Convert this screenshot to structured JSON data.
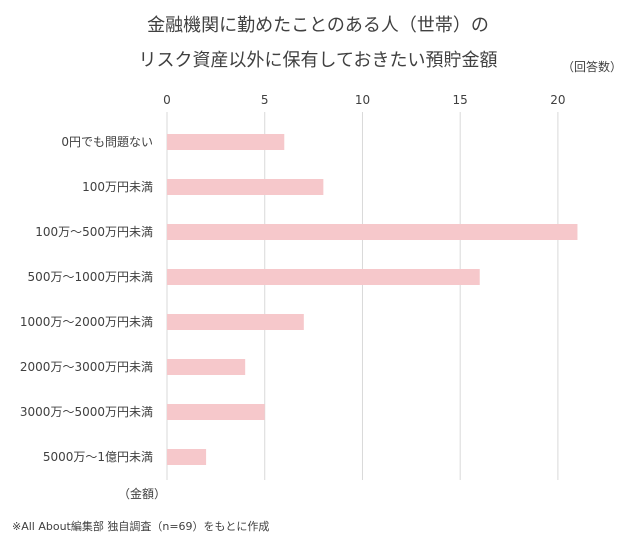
{
  "chart_data": {
    "type": "bar",
    "orientation": "horizontal",
    "title_lines": [
      "金融機関に勤めたことのある人（世帯）の",
      "リスク資産以外に保有しておきたい預貯金額"
    ],
    "value_unit_label": "（回答数）",
    "category_axis_label": "（金額）",
    "categories": [
      "0円でも問題ない",
      "100万円未満",
      "100万〜500万円未満",
      "500万〜1000万円未満",
      "1000万〜2000万円未満",
      "2000万〜3000万円未満",
      "3000万〜5000万円未満",
      "5000万〜1億円未満"
    ],
    "values": [
      6,
      8,
      21,
      16,
      7,
      4,
      5,
      2
    ],
    "xlim": [
      0,
      22
    ],
    "xticks": [
      0,
      5,
      10,
      15,
      20
    ],
    "grid": true,
    "colors": {
      "bar": "#f6c8cb",
      "grid": "#d9d9d9",
      "text": "#404040"
    }
  },
  "note": "※All About編集部 独自調査（n=69）をもとに作成"
}
